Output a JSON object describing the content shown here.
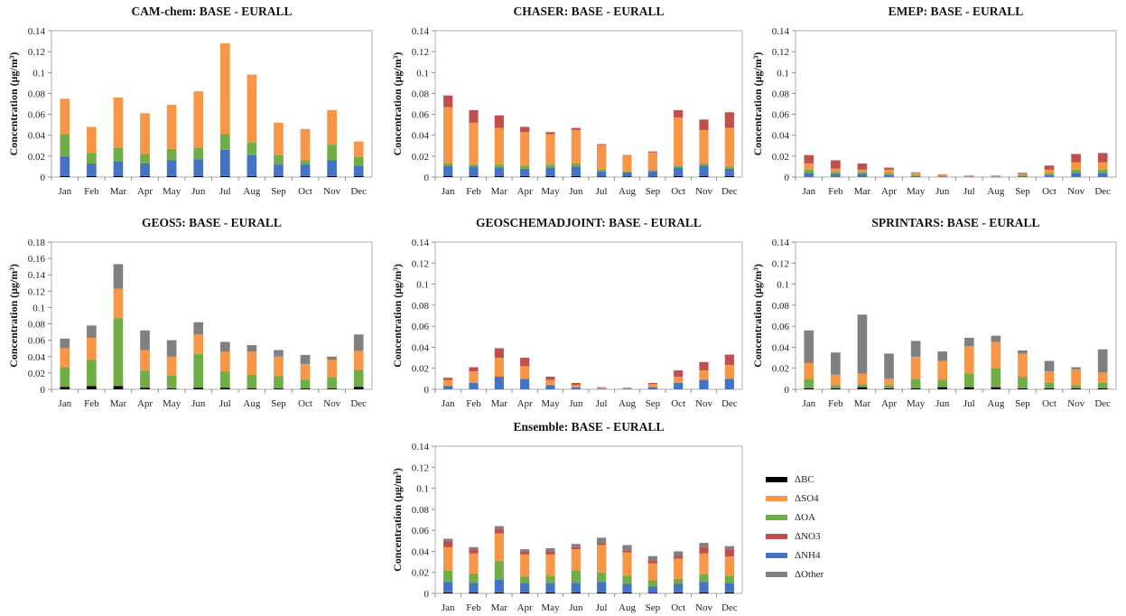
{
  "colors": {
    "BC": "#000000",
    "NH4": "#4472c4",
    "OA": "#70ad47",
    "SO4": "#f79646",
    "NO3": "#c0504d",
    "Other": "#808080"
  },
  "legend": [
    {
      "key": "BC",
      "label": "ΔBC"
    },
    {
      "key": "SO4",
      "label": "ΔSO4"
    },
    {
      "key": "OA",
      "label": "ΔOA"
    },
    {
      "key": "NO3",
      "label": "ΔNO3"
    },
    {
      "key": "NH4",
      "label": "ΔNH4"
    },
    {
      "key": "Other",
      "label": "ΔOther"
    }
  ],
  "ylabel": "Concentration (μg/m³)",
  "chart_data": [
    {
      "type": "bar",
      "stacked": true,
      "title": "CAM-chem: BASE - EURALL",
      "ylabel": "Concentration (μg/m³)",
      "ylim": [
        0,
        0.14
      ],
      "yticks": [
        "0",
        "0.02",
        "0.04",
        "0.06",
        "0.08",
        "0.1",
        "0.12",
        "0.14"
      ],
      "categories": [
        "Jan",
        "Feb",
        "Mar",
        "Apr",
        "May",
        "Jun",
        "Jul",
        "Aug",
        "Sep",
        "Oct",
        "Nov",
        "Dec"
      ],
      "series": [
        {
          "key": "BC",
          "values": [
            0.001,
            0.001,
            0.001,
            0.001,
            0.001,
            0.001,
            0.001,
            0.001,
            0.001,
            0.001,
            0.001,
            0.001
          ]
        },
        {
          "key": "NH4",
          "values": [
            0.019,
            0.012,
            0.014,
            0.012,
            0.015,
            0.016,
            0.025,
            0.02,
            0.011,
            0.011,
            0.015,
            0.01
          ]
        },
        {
          "key": "OA",
          "values": [
            0.021,
            0.01,
            0.013,
            0.009,
            0.011,
            0.011,
            0.015,
            0.012,
            0.009,
            0.004,
            0.015,
            0.008
          ]
        },
        {
          "key": "SO4",
          "values": [
            0.034,
            0.025,
            0.048,
            0.039,
            0.042,
            0.054,
            0.087,
            0.065,
            0.031,
            0.03,
            0.033,
            0.015
          ]
        },
        {
          "key": "NO3",
          "values": [
            0,
            0,
            0,
            0,
            0,
            0,
            0,
            0,
            0,
            0,
            0,
            0
          ]
        },
        {
          "key": "Other",
          "values": [
            0,
            0,
            0,
            0,
            0,
            0,
            0,
            0,
            0,
            0,
            0,
            0
          ]
        }
      ]
    },
    {
      "type": "bar",
      "stacked": true,
      "title": "CHASER: BASE - EURALL",
      "ylabel": "Concentration (μg/m³)",
      "ylim": [
        0,
        0.14
      ],
      "yticks": [
        "0",
        "0.02",
        "0.04",
        "0.06",
        "0.08",
        "0.1",
        "0.12",
        "0.14"
      ],
      "categories": [
        "Jan",
        "Feb",
        "Mar",
        "Apr",
        "May",
        "Jun",
        "Jul",
        "Aug",
        "Sep",
        "Oct",
        "Nov",
        "Dec"
      ],
      "series": [
        {
          "key": "BC",
          "values": [
            0.001,
            0.001,
            0.001,
            0.001,
            0.001,
            0.001,
            0.0005,
            0.0005,
            0.0005,
            0.001,
            0.001,
            0.001
          ]
        },
        {
          "key": "NH4",
          "values": [
            0.01,
            0.009,
            0.008,
            0.007,
            0.008,
            0.009,
            0.005,
            0.004,
            0.005,
            0.008,
            0.01,
            0.007
          ]
        },
        {
          "key": "OA",
          "values": [
            0.002,
            0.002,
            0.003,
            0.003,
            0.003,
            0.003,
            0.002,
            0.001,
            0.001,
            0.002,
            0.002,
            0.002
          ]
        },
        {
          "key": "SO4",
          "values": [
            0.054,
            0.04,
            0.035,
            0.032,
            0.029,
            0.032,
            0.023,
            0.015,
            0.017,
            0.046,
            0.032,
            0.037
          ]
        },
        {
          "key": "NO3",
          "values": [
            0.011,
            0.012,
            0.012,
            0.005,
            0.002,
            0.002,
            0.001,
            0.0005,
            0.001,
            0.007,
            0.01,
            0.015
          ]
        },
        {
          "key": "Other",
          "values": [
            0,
            0,
            0,
            0,
            0,
            0,
            0,
            0,
            0,
            0,
            0,
            0
          ]
        }
      ]
    },
    {
      "type": "bar",
      "stacked": true,
      "title": "EMEP: BASE - EURALL",
      "ylabel": "Concentration (μg/m³)",
      "ylim": [
        0,
        0.14
      ],
      "yticks": [
        "0",
        "0.02",
        "0.04",
        "0.06",
        "0.08",
        "0.1",
        "0.12",
        "0.14"
      ],
      "categories": [
        "Jan",
        "Feb",
        "Mar",
        "Apr",
        "May",
        "Jun",
        "Jul",
        "Aug",
        "Sep",
        "Oct",
        "Nov",
        "Dec"
      ],
      "series": [
        {
          "key": "BC",
          "values": [
            0,
            0,
            0,
            0,
            0,
            0,
            0,
            0,
            0,
            0,
            0,
            0
          ]
        },
        {
          "key": "NH4",
          "values": [
            0.004,
            0.003,
            0.003,
            0.002,
            0.001,
            0.0005,
            0.0003,
            0.0003,
            0.001,
            0.002,
            0.004,
            0.004
          ]
        },
        {
          "key": "OA",
          "values": [
            0.003,
            0.002,
            0.002,
            0.002,
            0.001,
            0.0005,
            0.0003,
            0.0003,
            0.001,
            0.002,
            0.003,
            0.003
          ]
        },
        {
          "key": "SO4",
          "values": [
            0.006,
            0.003,
            0.002,
            0.003,
            0.002,
            0.001,
            0.0005,
            0.0005,
            0.001,
            0.003,
            0.007,
            0.007
          ]
        },
        {
          "key": "NO3",
          "values": [
            0.008,
            0.008,
            0.006,
            0.002,
            0.0005,
            0.0005,
            0.0002,
            0.0002,
            0.001,
            0.004,
            0.008,
            0.009
          ]
        },
        {
          "key": "Other",
          "values": [
            0,
            0,
            0,
            0,
            0,
            0,
            0,
            0,
            0,
            0,
            0,
            0
          ]
        }
      ]
    },
    {
      "type": "bar",
      "stacked": true,
      "title": "GEOS5: BASE - EURALL",
      "ylabel": "Concentration (μg/m³)",
      "ylim": [
        0,
        0.18
      ],
      "yticks": [
        "0",
        "0.02",
        "0.04",
        "0.06",
        "0.08",
        "0.1",
        "0.12",
        "0.14",
        "0.16",
        "0.18"
      ],
      "categories": [
        "Jan",
        "Feb",
        "Mar",
        "Apr",
        "May",
        "Jun",
        "Jul",
        "Aug",
        "Sep",
        "Oct",
        "Nov",
        "Dec"
      ],
      "series": [
        {
          "key": "BC",
          "values": [
            0.003,
            0.004,
            0.004,
            0.002,
            0.001,
            0.002,
            0.002,
            0.001,
            0.001,
            0.001,
            0.001,
            0.003
          ]
        },
        {
          "key": "NH4",
          "values": [
            0,
            0,
            0,
            0,
            0,
            0,
            0,
            0,
            0,
            0,
            0,
            0
          ]
        },
        {
          "key": "OA",
          "values": [
            0.024,
            0.032,
            0.083,
            0.021,
            0.016,
            0.041,
            0.02,
            0.017,
            0.015,
            0.011,
            0.014,
            0.021
          ]
        },
        {
          "key": "SO4",
          "values": [
            0.023,
            0.027,
            0.036,
            0.025,
            0.023,
            0.024,
            0.024,
            0.028,
            0.024,
            0.019,
            0.021,
            0.023
          ]
        },
        {
          "key": "NO3",
          "values": [
            0,
            0,
            0,
            0,
            0,
            0,
            0,
            0,
            0,
            0,
            0,
            0
          ]
        },
        {
          "key": "Other",
          "values": [
            0.012,
            0.015,
            0.03,
            0.024,
            0.02,
            0.015,
            0.012,
            0.008,
            0.008,
            0.011,
            0.004,
            0.02
          ]
        }
      ]
    },
    {
      "type": "bar",
      "stacked": true,
      "title": "GEOSCHEMADJOINT: BASE - EURALL",
      "ylabel": "Concentration (μg/m³)",
      "ylim": [
        0,
        0.14
      ],
      "yticks": [
        "0",
        "0.02",
        "0.04",
        "0.06",
        "0.08",
        "0.1",
        "0.12",
        "0.14"
      ],
      "categories": [
        "Jan",
        "Feb",
        "Mar",
        "Apr",
        "May",
        "Jun",
        "Jul",
        "Aug",
        "Sep",
        "Oct",
        "Nov",
        "Dec"
      ],
      "series": [
        {
          "key": "BC",
          "values": [
            0,
            0,
            0,
            0,
            0,
            0,
            0,
            0,
            0,
            0,
            0,
            0
          ]
        },
        {
          "key": "NH4",
          "values": [
            0.003,
            0.006,
            0.012,
            0.01,
            0.004,
            0.002,
            0.0005,
            0.0005,
            0.002,
            0.006,
            0.009,
            0.01
          ]
        },
        {
          "key": "OA",
          "values": [
            0,
            0,
            0,
            0,
            0,
            0,
            0,
            0,
            0,
            0,
            0,
            0
          ]
        },
        {
          "key": "SO4",
          "values": [
            0.006,
            0.011,
            0.018,
            0.012,
            0.005,
            0.002,
            0.001,
            0.0005,
            0.003,
            0.006,
            0.009,
            0.013
          ]
        },
        {
          "key": "NO3",
          "values": [
            0.002,
            0.004,
            0.009,
            0.008,
            0.003,
            0.002,
            0.0005,
            0.0005,
            0.001,
            0.006,
            0.008,
            0.01
          ]
        },
        {
          "key": "Other",
          "values": [
            0,
            0,
            0,
            0,
            0,
            0,
            0,
            0,
            0,
            0,
            0,
            0
          ]
        }
      ]
    },
    {
      "type": "bar",
      "stacked": true,
      "title": "SPRINTARS: BASE - EURALL",
      "ylabel": "Concentration (μg/m³)",
      "ylim": [
        0,
        0.14
      ],
      "yticks": [
        "0",
        "0.02",
        "0.04",
        "0.06",
        "0.08",
        "0.1",
        "0.12",
        "0.14"
      ],
      "categories": [
        "Jan",
        "Feb",
        "Mar",
        "Apr",
        "May",
        "Jun",
        "Jul",
        "Aug",
        "Sep",
        "Oct",
        "Nov",
        "Dec"
      ],
      "series": [
        {
          "key": "BC",
          "values": [
            0.001,
            0.001,
            0.002,
            0.001,
            0.001,
            0.002,
            0.002,
            0.002,
            0.001,
            0.001,
            0.001,
            0.001
          ]
        },
        {
          "key": "NH4",
          "values": [
            0,
            0,
            0,
            0,
            0,
            0,
            0,
            0,
            0,
            0,
            0,
            0
          ]
        },
        {
          "key": "OA",
          "values": [
            0.009,
            0.003,
            0.003,
            0.003,
            0.009,
            0.007,
            0.013,
            0.018,
            0.011,
            0.005,
            0.003,
            0.005
          ]
        },
        {
          "key": "SO4",
          "values": [
            0.015,
            0.01,
            0.01,
            0.006,
            0.021,
            0.018,
            0.026,
            0.025,
            0.022,
            0.011,
            0.015,
            0.01
          ]
        },
        {
          "key": "NO3",
          "values": [
            0,
            0,
            0,
            0,
            0,
            0,
            0,
            0,
            0,
            0,
            0,
            0
          ]
        },
        {
          "key": "Other",
          "values": [
            0.031,
            0.021,
            0.056,
            0.024,
            0.015,
            0.009,
            0.008,
            0.006,
            0.003,
            0.01,
            0.002,
            0.022
          ]
        }
      ]
    },
    {
      "type": "bar",
      "stacked": true,
      "title": "Ensemble: BASE -  EURALL",
      "ylabel": "Concentration (μg/m³)",
      "ylim": [
        0,
        0.14
      ],
      "yticks": [
        "0",
        "0.02",
        "0.04",
        "0.06",
        "0.08",
        "0.1",
        "0.12",
        "0.14"
      ],
      "categories": [
        "Jan",
        "Feb",
        "Mar",
        "Apr",
        "May",
        "Jun",
        "Jul",
        "Aug",
        "Sep",
        "Oct",
        "Nov",
        "Dec"
      ],
      "series": [
        {
          "key": "BC",
          "values": [
            0.001,
            0.001,
            0.001,
            0.001,
            0.001,
            0.001,
            0.001,
            0.001,
            0.0005,
            0.001,
            0.001,
            0.001
          ]
        },
        {
          "key": "NH4",
          "values": [
            0.01,
            0.009,
            0.012,
            0.009,
            0.009,
            0.009,
            0.01,
            0.008,
            0.006,
            0.008,
            0.01,
            0.009
          ]
        },
        {
          "key": "OA",
          "values": [
            0.011,
            0.009,
            0.018,
            0.006,
            0.007,
            0.012,
            0.009,
            0.008,
            0.006,
            0.005,
            0.007,
            0.007
          ]
        },
        {
          "key": "SO4",
          "values": [
            0.022,
            0.019,
            0.026,
            0.021,
            0.02,
            0.02,
            0.026,
            0.022,
            0.016,
            0.019,
            0.02,
            0.018
          ]
        },
        {
          "key": "NO3",
          "values": [
            0.006,
            0.004,
            0.004,
            0.003,
            0.003,
            0.002,
            0.002,
            0.002,
            0.003,
            0.003,
            0.006,
            0.007
          ]
        },
        {
          "key": "Other",
          "values": [
            0.002,
            0.002,
            0.003,
            0.002,
            0.003,
            0.003,
            0.005,
            0.005,
            0.004,
            0.004,
            0.004,
            0.003
          ]
        }
      ]
    }
  ]
}
